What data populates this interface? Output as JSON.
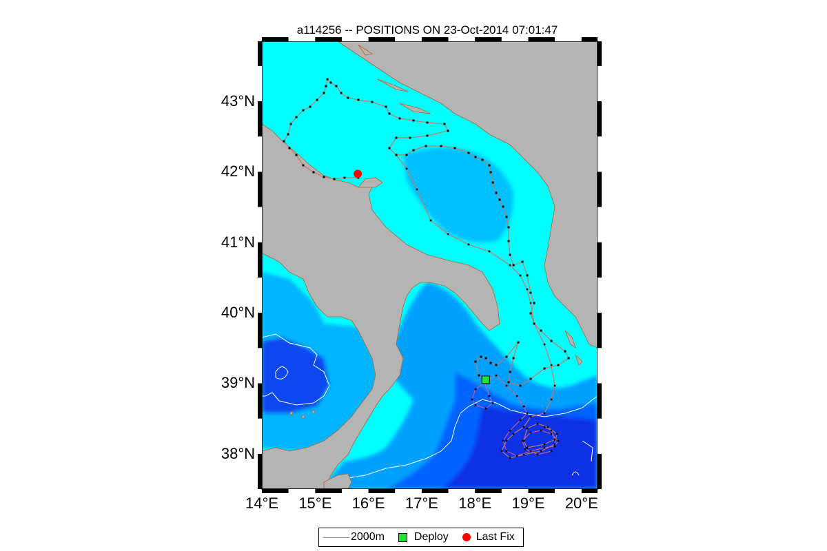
{
  "title": "a114256 -- POSITIONS ON 23-Oct-2014 07:01:47",
  "lat_labels": [
    {
      "lat": 43,
      "label": "43°N"
    },
    {
      "lat": 42,
      "label": "42°N"
    },
    {
      "lat": 41,
      "label": "41°N"
    },
    {
      "lat": 40,
      "label": "40°N"
    },
    {
      "lat": 39,
      "label": "39°N"
    },
    {
      "lat": 38,
      "label": "38°N"
    }
  ],
  "lon_labels": [
    {
      "lon": 14,
      "label": "14°E"
    },
    {
      "lon": 15,
      "label": "15°E"
    },
    {
      "lon": 16,
      "label": "16°E"
    },
    {
      "lon": 17,
      "label": "17°E"
    },
    {
      "lon": 18,
      "label": "18°E"
    },
    {
      "lon": 19,
      "label": "19°E"
    },
    {
      "lon": 20,
      "label": "20°E"
    }
  ],
  "legend": {
    "contour_label": "2000m",
    "deploy_label": "Deploy",
    "last_fix_label": "Last Fix"
  },
  "map_extent": {
    "lon_min": 14,
    "lon_max": 20.3,
    "lat_min": 37.5,
    "lat_max": 43.85
  },
  "markers": {
    "deploy": {
      "lon": 18.2,
      "lat": 39.05
    },
    "last_fix": {
      "lon": 15.8,
      "lat": 41.97
    }
  },
  "colors": {
    "land": "#b4b4b4",
    "shallow": "#00ffff",
    "mid": "#00c8ff",
    "deep": "#0a3cf0",
    "track": "#c87864",
    "deploy": "#1ee633",
    "last_fix": "#ff0000"
  }
}
